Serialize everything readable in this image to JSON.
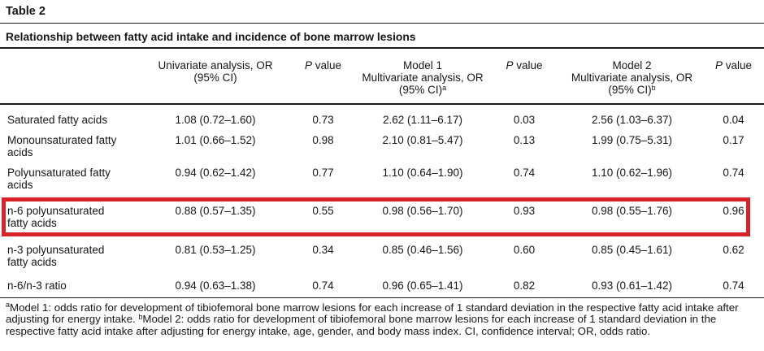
{
  "table_label": "Table 2",
  "table_title": "Relationship between fatty acid intake and incidence of bone marrow lesions",
  "highlight": {
    "color": "#d8232a",
    "highlighted_row_label": "n-6 polyunsaturated fatty acids"
  },
  "table": {
    "columns": [
      {
        "key": "fatty-acid",
        "header": null
      },
      {
        "key": "univariate-or",
        "header": {
          "lines": [
            "Univariate analysis, OR",
            "(95% CI)"
          ],
          "sup": ""
        }
      },
      {
        "key": "univariate-p",
        "header": {
          "italic": "P",
          "rest": " value"
        }
      },
      {
        "key": "model1-or",
        "header": {
          "lines": [
            "Model 1",
            "Multivariate analysis, OR",
            "(95% CI)"
          ],
          "sup": "a"
        }
      },
      {
        "key": "model1-p",
        "header": {
          "italic": "P",
          "rest": " value"
        }
      },
      {
        "key": "model2-or",
        "header": {
          "lines": [
            "Model 2",
            "Multivariate analysis, OR",
            "(95% CI)"
          ],
          "sup": "b"
        }
      },
      {
        "key": "model2-p",
        "header": {
          "italic": "P",
          "rest": " value"
        }
      }
    ],
    "rows": [
      {
        "label": "Saturated fatty acids",
        "highlighted": false,
        "values": [
          "1.08 (0.72–1.60)",
          "0.73",
          "2.62 (1.11–6.17)",
          "0.03",
          "2.56 (1.03–6.37)",
          "0.04"
        ]
      },
      {
        "label": "Monounsaturated fatty acids",
        "highlighted": false,
        "values": [
          "1.01 (0.66–1.52)",
          "0.98",
          "2.10 (0.81–5.47)",
          "0.13",
          "1.99 (0.75–5.31)",
          "0.17"
        ]
      },
      {
        "label": "Polyunsaturated fatty acids",
        "highlighted": false,
        "values": [
          "0.94 (0.62–1.42)",
          "0.77",
          "1.10 (0.64–1.90)",
          "0.74",
          "1.10 (0.62–1.96)",
          "0.74"
        ]
      },
      {
        "label": "n-6 polyunsaturated fatty acids",
        "highlighted": true,
        "values": [
          "0.88 (0.57–1.35)",
          "0.55",
          "0.98 (0.56–1.70)",
          "0.93",
          "0.98 (0.55–1.76)",
          "0.96"
        ]
      },
      {
        "label": "n-3 polyunsaturated fatty acids",
        "highlighted": false,
        "values": [
          "0.81 (0.53–1.25)",
          "0.34",
          "0.85 (0.46–1.56)",
          "0.60",
          "0.85 (0.45–1.61)",
          "0.62"
        ]
      },
      {
        "label": "n-6/n-3 ratio",
        "highlighted": false,
        "values": [
          "0.94 (0.63–1.38)",
          "0.74",
          "0.96 (0.65–1.41)",
          "0.82",
          "0.93 (0.61–1.42)",
          "0.74"
        ]
      }
    ]
  },
  "footnote": {
    "parts": [
      {
        "sup": "a"
      },
      {
        "text": "Model 1: odds ratio for development of tibiofemoral bone marrow lesions for each increase of 1 standard deviation in the respective fatty acid intake after adjusting for energy intake. "
      },
      {
        "sup": "b"
      },
      {
        "text": "Model 2: odds ratio for development of tibiofemoral bone marrow lesions for each increase of 1 standard deviation in the respective fatty acid intake after adjusting for energy intake, age, gender, and body mass index. CI, confidence interval; OR, odds ratio."
      }
    ]
  }
}
